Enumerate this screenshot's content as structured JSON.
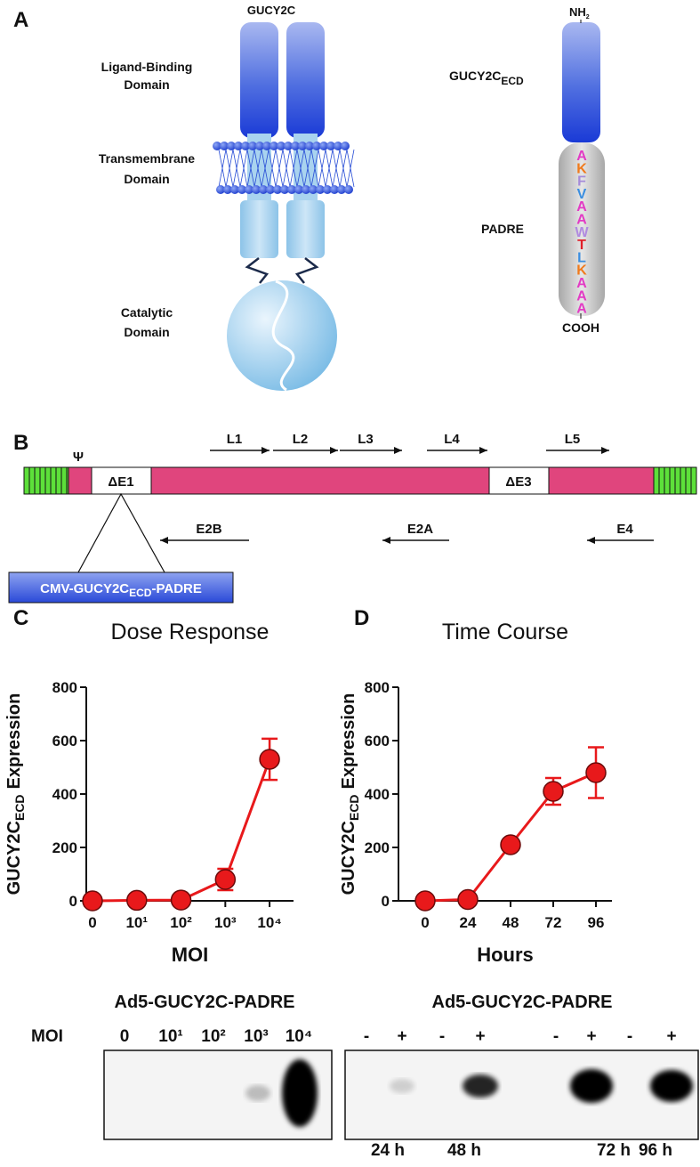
{
  "panels": {
    "a": "A",
    "b": "B",
    "c": "C",
    "d": "D"
  },
  "panel_a": {
    "receptor_title": "GUCY2C",
    "ligand_binding": [
      "Ligand-Binding",
      "Domain"
    ],
    "transmembrane": [
      "Transmembrane",
      "Domain"
    ],
    "catalytic": [
      "Catalytic",
      "Domain"
    ],
    "nh": "NH",
    "nh_sub": "2",
    "ecd_name": "GUCY2C",
    "ecd_sub": "ECD",
    "padre": "PADRE",
    "padre_seq": [
      "A",
      "K",
      "F",
      "V",
      "A",
      "A",
      "W",
      "T",
      "L",
      "K",
      "A",
      "A",
      "A"
    ],
    "cooh": "COOH"
  },
  "panel_b": {
    "psi": "Ψ",
    "deletions": [
      "ΔE1",
      "ΔE3"
    ],
    "late": [
      "L1",
      "L2",
      "L3",
      "L4",
      "L5"
    ],
    "early": [
      "E2B",
      "E2A",
      "E4"
    ],
    "insert": [
      "CMV-GUCY2C",
      "ECD",
      "-PADRE"
    ]
  },
  "chart_data": [
    {
      "type": "line",
      "title": "Dose Response",
      "x_label": "MOI",
      "y_label": [
        "GUCY2C",
        "ECD",
        "Expression"
      ],
      "categories": [
        "0",
        "10¹",
        "10²",
        "10³",
        "10⁴"
      ],
      "values": [
        0,
        2,
        3,
        80,
        530
      ],
      "errors": [
        null,
        null,
        null,
        40,
        77
      ],
      "color": "#e8191b",
      "ylim": [
        0,
        800
      ],
      "yticks": [
        0,
        200,
        400,
        600,
        800
      ]
    },
    {
      "type": "line",
      "title": "Time Course",
      "x_label": "Hours",
      "y_label": [
        "GUCY2C",
        "ECD",
        "Expression"
      ],
      "x": [
        0,
        24,
        48,
        72,
        96
      ],
      "xlim": [
        -15,
        105
      ],
      "xticks": [
        0,
        24,
        48,
        72,
        96
      ],
      "values": [
        0,
        5,
        210,
        410,
        480
      ],
      "errors": [
        null,
        null,
        null,
        50,
        95
      ],
      "color": "#e8191b",
      "ylim": [
        0,
        800
      ],
      "yticks": [
        0,
        200,
        400,
        600,
        800
      ]
    }
  ],
  "blots": [
    {
      "title": "Ad5-GUCY2C-PADRE",
      "row_label": "MOI",
      "lanes": [
        "0",
        "10¹",
        "10²",
        "10³",
        "10⁴"
      ]
    },
    {
      "title": "Ad5-GUCY2C-PADRE",
      "lanes": [
        "-",
        "+",
        "-",
        "+",
        "-",
        "+",
        "-",
        "+"
      ],
      "times": [
        "24 h",
        "48 h",
        "72 h",
        "96 h"
      ]
    }
  ]
}
